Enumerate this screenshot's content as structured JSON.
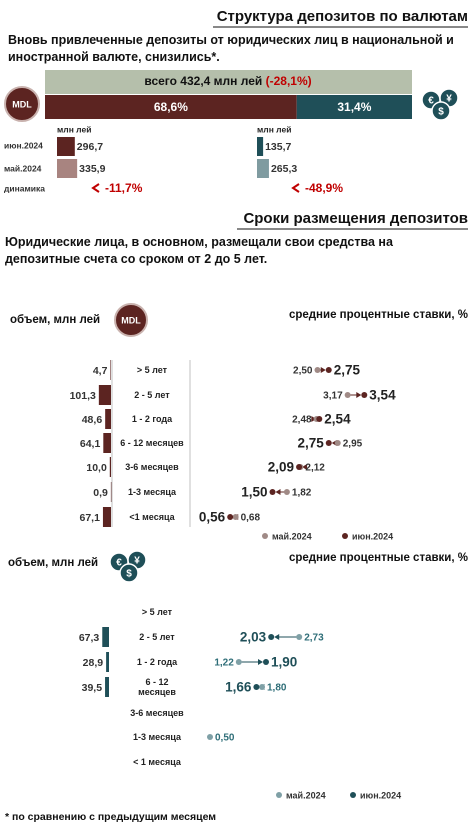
{
  "title": "Структура депозитов по валютам",
  "subtitle": "Вновь привлеченные депозиты от юридических лиц в национальной и иностранной валюте, снизились*.",
  "currency_badge": "MDL",
  "total": {
    "label": "всего 432,4 млн лей",
    "change": "(-28,1%)"
  },
  "shares": {
    "values": [
      68.6,
      31.4
    ],
    "value_labels": [
      "68,6%",
      "31,4%"
    ],
    "colors": [
      "#5c2421",
      "#1f4f58"
    ]
  },
  "unit": "млн лей",
  "row_labels": [
    "июн.2024",
    "май.2024",
    "динамика"
  ],
  "mdl": {
    "values": [
      296.7,
      335.9
    ],
    "value_labels": [
      "296,7",
      "335,9"
    ],
    "colors": [
      "#5c2421",
      "#a88480"
    ],
    "change": "-11,7%"
  },
  "fx": {
    "values": [
      135.7,
      265.3
    ],
    "value_labels": [
      "135,7",
      "265,3"
    ],
    "colors": [
      "#1f4f58",
      "#7f9ba0"
    ],
    "change": "-48,9%"
  },
  "terms_title": "Сроки размещения депозитов",
  "terms_subtitle": "Юридические лица, в основном, размещали свои средства на депозитные счета со сроком от 2 до 5 лет.",
  "mdl_terms": {
    "volume_label": "объем, млн лей",
    "rate_label": "средние процентные ставки, %",
    "categories": [
      "> 5 лет",
      "2 - 5 лет",
      "1 - 2 года",
      "6 - 12 месяцев",
      "3-6 месяцев",
      "1-3 месяца",
      "<1 месяца"
    ],
    "volumes": [
      4.7,
      101.3,
      48.6,
      64.1,
      10.0,
      0.9,
      67.1
    ],
    "volume_labels": [
      "4,7",
      "101,3",
      "48,6",
      "64,1",
      "10,0",
      "0,9",
      "67,1"
    ],
    "may": [
      2.5,
      3.17,
      2.48,
      2.95,
      2.12,
      1.82,
      0.68
    ],
    "may_labels": [
      "2,50",
      "3,17",
      "2,48",
      "2,95",
      "2,12",
      "1,82",
      "0,68"
    ],
    "june": [
      2.75,
      3.54,
      2.54,
      2.75,
      2.09,
      1.5,
      0.56
    ],
    "june_labels": [
      "2,75",
      "3,54",
      "2,54",
      "2,75",
      "2,09",
      "1,50",
      "0,56"
    ],
    "legend": [
      "май.2024",
      "июн.2024"
    ],
    "colors": [
      "#a08a86",
      "#5c2421"
    ],
    "bar_color": "#5c2421"
  },
  "fx_terms": {
    "volume_label": "объем, млн лей",
    "rate_label": "средние процентные ставки, %",
    "categories": [
      "> 5 лет",
      "2 - 5 лет",
      "1 - 2 года",
      "6 - 12 месяцев",
      "3-6 месяцев",
      "1-3 месяца",
      "< 1 месяца"
    ],
    "volumes": [
      null,
      67.3,
      28.9,
      39.5,
      null,
      null,
      null
    ],
    "volume_labels": [
      null,
      "67,3",
      "28,9",
      "39,5",
      null,
      null,
      null
    ],
    "may": [
      null,
      2.73,
      1.22,
      1.8,
      null,
      0.5,
      null
    ],
    "may_labels": [
      null,
      "2,73",
      "1,22",
      "1,80",
      null,
      "0,50",
      null
    ],
    "june": [
      null,
      2.03,
      1.9,
      1.66,
      null,
      null,
      null
    ],
    "june_labels": [
      null,
      "2,03",
      "1,90",
      "1,66",
      null,
      null,
      null
    ],
    "legend": [
      "май.2024",
      "июн.2024"
    ],
    "colors": [
      "#7fa0a6",
      "#1f4f58"
    ],
    "bar_color": "#1f4f58"
  },
  "footnote": "* по сравнению с предыдущим месяцем"
}
